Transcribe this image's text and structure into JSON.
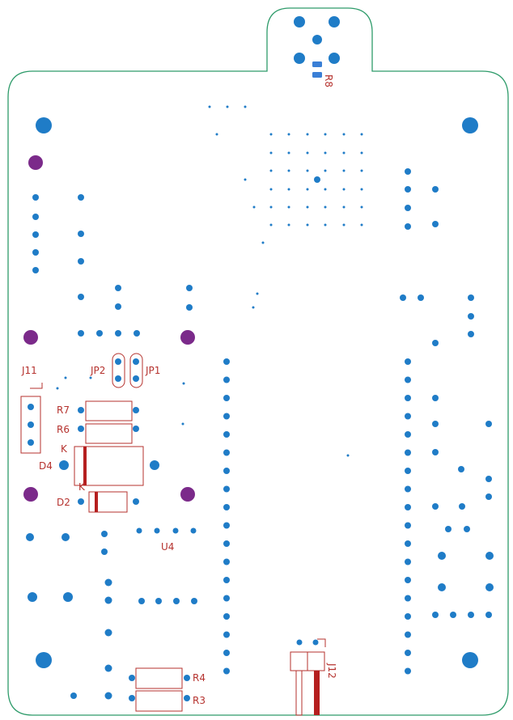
{
  "colors": {
    "outline": "#2e9b6a",
    "pad": "#1f7cc7",
    "mount_hole": "#7b2a8a",
    "silk": "#b5322e",
    "copper_dark": "#b51f1f",
    "background": "#ffffff"
  },
  "labels": {
    "r8": "R8",
    "j11": "J11",
    "jp2": "JP2",
    "jp1": "JP1",
    "r7": "R7",
    "r6": "R6",
    "d4": "D4",
    "k1": "K",
    "k2": "K",
    "d2": "D2",
    "u4": "U4",
    "r4": "R4",
    "r3": "R3",
    "j12": "J12"
  }
}
